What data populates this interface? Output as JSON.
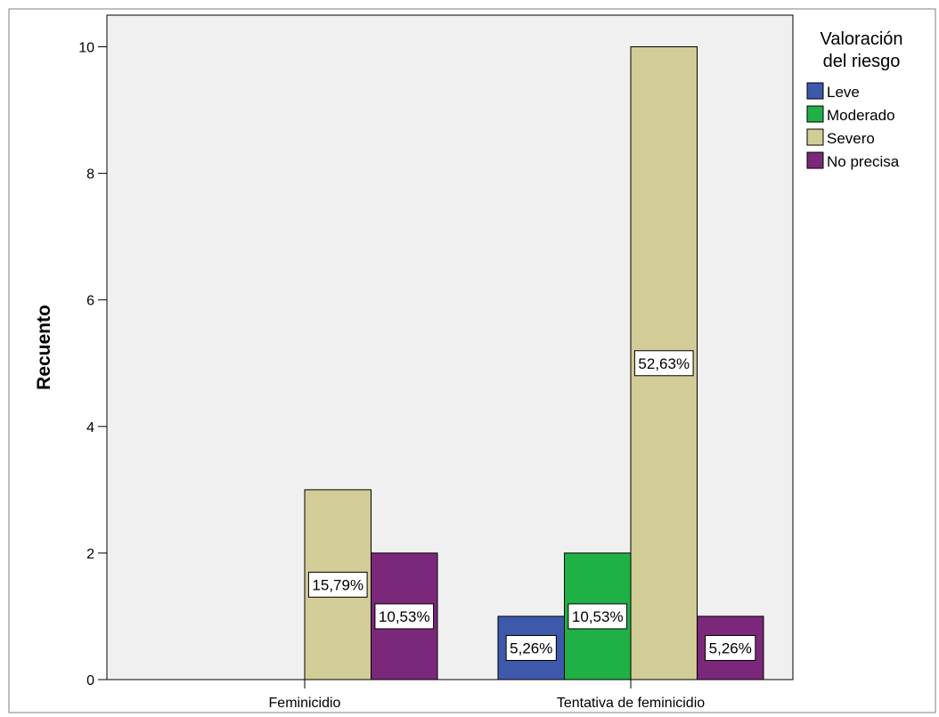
{
  "chart_data": {
    "type": "bar",
    "categories": [
      "Feminicidio",
      "Tentativa de feminicidio"
    ],
    "ylabel": "Recuento",
    "ylim": [
      0,
      10
    ],
    "yticks": [
      0,
      2,
      4,
      6,
      8,
      10
    ],
    "legend": {
      "title": [
        "Valoración",
        "del riesgo"
      ],
      "placement": "right"
    },
    "series": [
      {
        "name": "Leve",
        "color": "#3e58ac",
        "values": [
          0,
          1
        ],
        "labels": [
          "",
          "5,26%"
        ]
      },
      {
        "name": "Moderado",
        "color": "#1fb146",
        "values": [
          0,
          2
        ],
        "labels": [
          "",
          "10,53%"
        ]
      },
      {
        "name": "Severo",
        "color": "#d2cc96",
        "values": [
          3,
          10
        ],
        "labels": [
          "15,79%",
          "52,63%"
        ]
      },
      {
        "name": "No precisa",
        "color": "#7b287b",
        "values": [
          2,
          1
        ],
        "labels": [
          "10,53%",
          "5,26%"
        ]
      }
    ],
    "plot_background": "#f0f0f0",
    "grid": false
  }
}
